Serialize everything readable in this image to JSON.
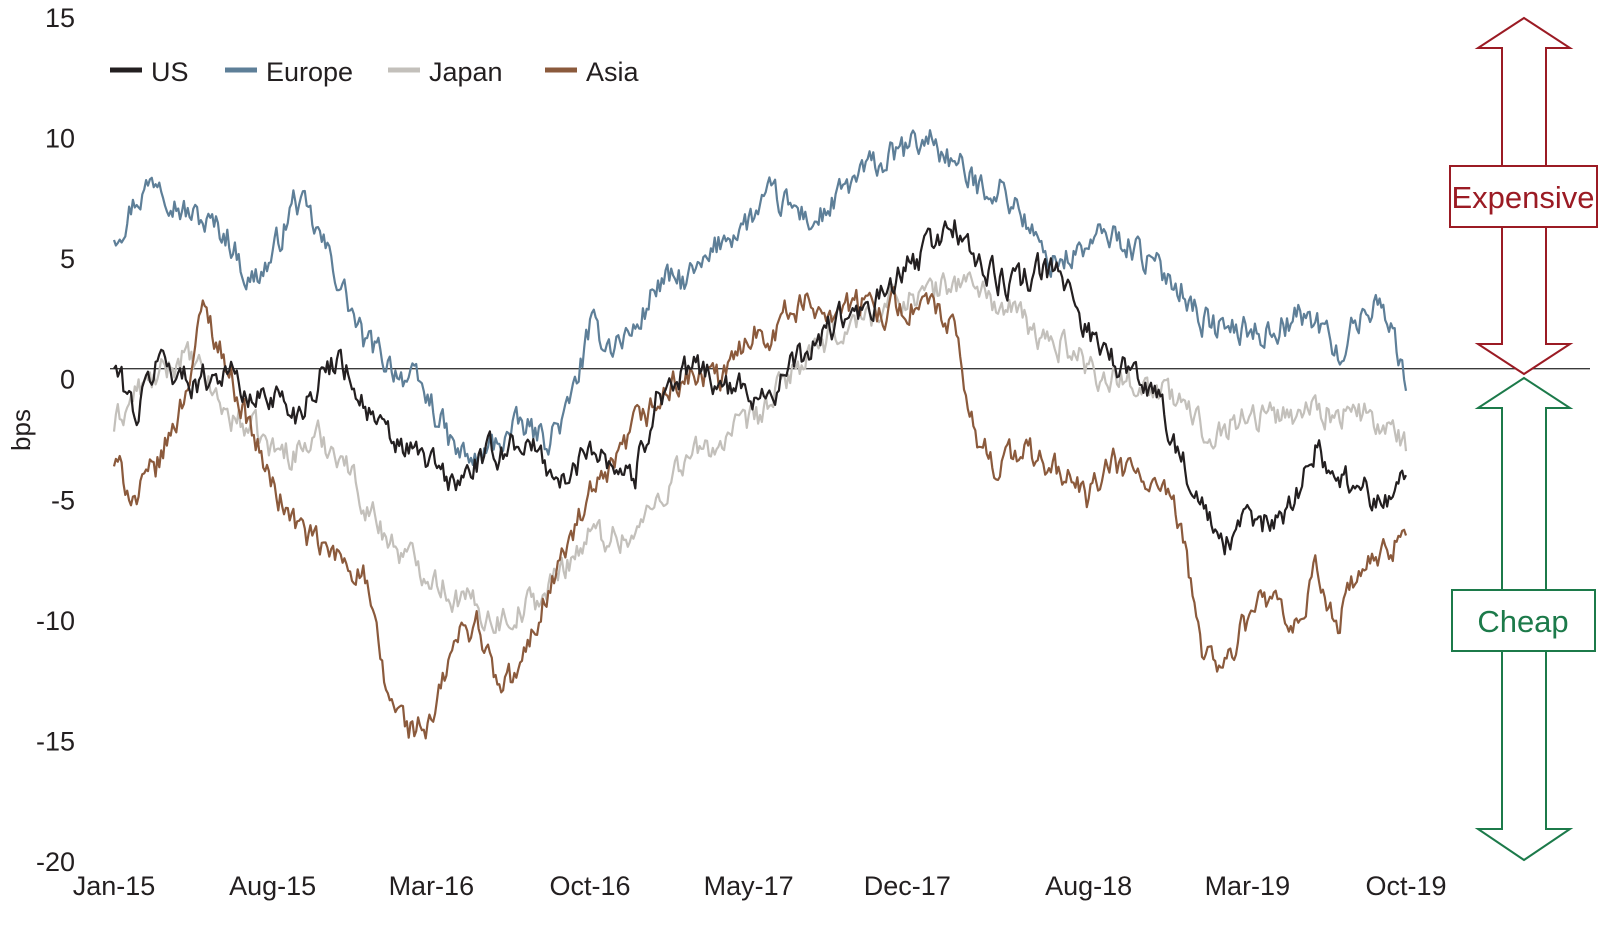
{
  "chart_data": {
    "type": "line",
    "ylabel": "bps",
    "ylim": [
      -20,
      15
    ],
    "yticks": [
      "15",
      "10",
      "5",
      "0",
      "-5",
      "-10",
      "-15",
      "-20"
    ],
    "xticks": [
      "Jan-15",
      "Aug-15",
      "Mar-16",
      "Oct-16",
      "May-17",
      "Dec-17",
      "Aug-18",
      "Mar-19",
      "Oct-19"
    ],
    "xtick_dates": [
      "2015-01",
      "2015-08",
      "2016-03",
      "2016-10",
      "2017-05",
      "2017-12",
      "2018-08",
      "2019-03",
      "2019-10"
    ],
    "legend_position": "top-left",
    "reference_line": 0,
    "x_dates": [
      "2015-01",
      "2015-02",
      "2015-03",
      "2015-04",
      "2015-05",
      "2015-06",
      "2015-07",
      "2015-08",
      "2015-09",
      "2015-10",
      "2015-11",
      "2015-12",
      "2016-01",
      "2016-02",
      "2016-03",
      "2016-04",
      "2016-05",
      "2016-06",
      "2016-07",
      "2016-08",
      "2016-09",
      "2016-10",
      "2016-11",
      "2016-12",
      "2017-01",
      "2017-02",
      "2017-03",
      "2017-04",
      "2017-05",
      "2017-06",
      "2017-07",
      "2017-08",
      "2017-09",
      "2017-10",
      "2017-11",
      "2017-12",
      "2018-01",
      "2018-02",
      "2018-03",
      "2018-04",
      "2018-05",
      "2018-06",
      "2018-07",
      "2018-08",
      "2018-09",
      "2018-10",
      "2018-11",
      "2018-12",
      "2019-01",
      "2019-02",
      "2019-03",
      "2019-04",
      "2019-05",
      "2019-06",
      "2019-07",
      "2019-08",
      "2019-09",
      "2019-10"
    ],
    "series": [
      {
        "name": "US",
        "color": "#231f20",
        "values": [
          0.5,
          -1.5,
          1,
          0,
          0,
          0.5,
          -1,
          -0.5,
          -1.5,
          0,
          1,
          -1,
          -2.5,
          -3,
          -3.5,
          -4.5,
          -3.5,
          -3,
          -2.5,
          -3.5,
          -4.5,
          -2.5,
          -3.5,
          -4,
          -0.5,
          0,
          0.5,
          -0.5,
          -0.5,
          -0.5,
          0.5,
          1.5,
          2.5,
          2.5,
          3.5,
          4.5,
          5.5,
          6.5,
          5,
          4,
          4,
          4.5,
          4,
          2,
          1,
          0,
          -0.5,
          -3,
          -5.5,
          -7,
          -6,
          -6,
          -5,
          -3,
          -4,
          -4.5,
          -5,
          -4
        ]
      },
      {
        "name": "Europe",
        "color": "#5e7f98",
        "values": [
          6,
          7.5,
          8.5,
          7,
          6.5,
          6,
          4,
          5,
          7.5,
          6,
          4,
          1.5,
          0.8,
          0,
          -1,
          -3,
          -3.5,
          -2.5,
          -2,
          -2.5,
          -1.5,
          2,
          1.5,
          2,
          4,
          4,
          4.5,
          6,
          6.5,
          7.5,
          7,
          6.5,
          7.5,
          8.5,
          9,
          9.5,
          10,
          9,
          8,
          8,
          7,
          5,
          5,
          5.5,
          6,
          5.5,
          4.5,
          4,
          2.5,
          2,
          2,
          2,
          2.5,
          2.5,
          1,
          2.5,
          3.5,
          -0.5
        ]
      },
      {
        "name": "Japan",
        "color": "#c3c0bb",
        "values": [
          -2,
          -0.5,
          0,
          1,
          0,
          -1.5,
          -2,
          -3,
          -3,
          -2.5,
          -3,
          -5,
          -6.5,
          -7.5,
          -8,
          -9,
          -9.5,
          -10,
          -9.5,
          -9,
          -7.5,
          -6.5,
          -6.5,
          -6.5,
          -5,
          -3.5,
          -3,
          -2.5,
          -2,
          -1,
          0.5,
          1,
          2,
          2.5,
          3,
          3.5,
          3.5,
          4,
          4,
          3,
          2.5,
          1.5,
          1.5,
          0.5,
          0,
          0,
          -0.5,
          -1,
          -2,
          -2,
          -1.5,
          -1.5,
          -1.5,
          -1,
          -1.5,
          -1.5,
          -2,
          -3
        ]
      },
      {
        "name": "Asia",
        "color": "#8b5a3c",
        "values": [
          -3.5,
          -5,
          -3.5,
          -1,
          3,
          0.5,
          -2,
          -4.5,
          -6,
          -7,
          -7.5,
          -8,
          -13,
          -14.5,
          -14.5,
          -11,
          -10,
          -13,
          -12,
          -9,
          -7,
          -5,
          -4,
          -2,
          -1,
          0,
          0,
          0,
          2,
          2,
          3,
          3,
          3,
          3,
          3,
          3,
          3,
          2,
          -2.5,
          -3.5,
          -3,
          -3.5,
          -4,
          -5,
          -3.5,
          -4,
          -4.5,
          -6,
          -11,
          -12,
          -10,
          -9,
          -11,
          -8,
          -10,
          -8,
          -7.5,
          -6.5
        ]
      }
    ],
    "annotations": [
      {
        "label": "Expensive",
        "direction": "up",
        "color": "#9b1b24"
      },
      {
        "label": "Cheap",
        "direction": "down",
        "color": "#1c7a4a"
      }
    ]
  }
}
